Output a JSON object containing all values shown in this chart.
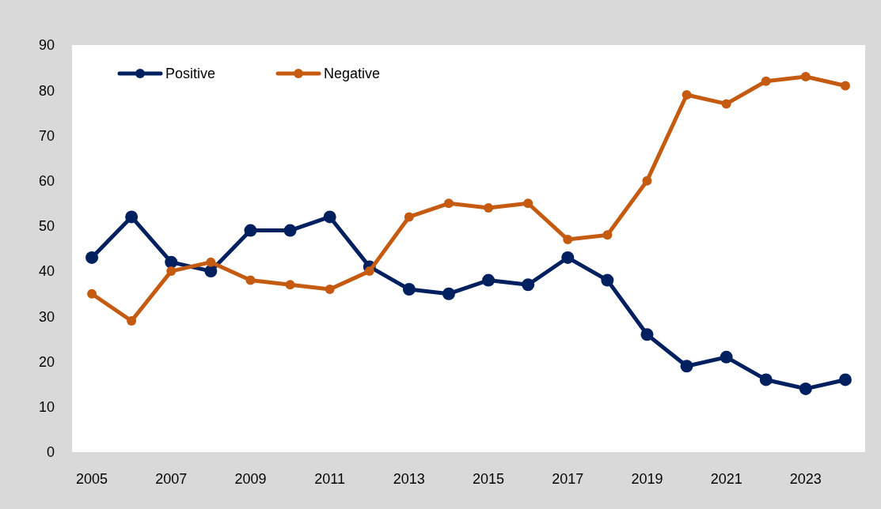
{
  "chart_data": {
    "type": "line",
    "categories": [
      "2005",
      null,
      "2007",
      null,
      "2009",
      null,
      "2011",
      null,
      "2013",
      null,
      "2015",
      null,
      "2017",
      null,
      "2019",
      null,
      "2021",
      null,
      "2023",
      null
    ],
    "series": [
      {
        "name": "Positive",
        "color": "#002060",
        "values": [
          43,
          52,
          42,
          40,
          49,
          49,
          52,
          41,
          36,
          35,
          38,
          37,
          43,
          38,
          26,
          19,
          21,
          16,
          14,
          16
        ]
      },
      {
        "name": "Negative",
        "color": "#c55a11",
        "values": [
          35,
          29,
          40,
          42,
          38,
          37,
          36,
          40,
          52,
          55,
          54,
          55,
          47,
          48,
          60,
          79,
          77,
          82,
          83,
          81
        ]
      }
    ],
    "ylim": [
      0,
      90
    ],
    "yticks": [
      0,
      10,
      20,
      30,
      40,
      50,
      60,
      70,
      80,
      90
    ],
    "grid": false,
    "legend": "top left",
    "marker": "circle",
    "line_style": "solid"
  }
}
